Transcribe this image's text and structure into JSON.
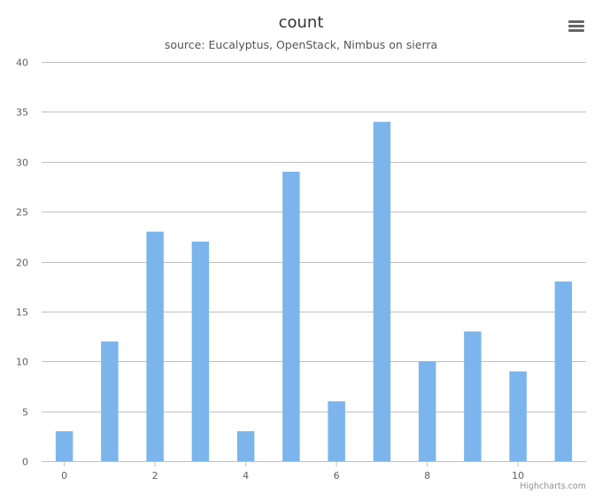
{
  "title": "count",
  "subtitle": "source: Eucalyptus, OpenStack, Nimbus on sierra",
  "credits": "Highcharts.com",
  "menu": {
    "icon": "hamburger-menu-icon"
  },
  "colors": {
    "bar": "#7cb5ec",
    "grid": "#c0c0c0",
    "axis_label": "#606060",
    "title": "#333333"
  },
  "chart_data": {
    "type": "bar",
    "title": "count",
    "subtitle": "source: Eucalyptus, OpenStack, Nimbus on sierra",
    "x": [
      0,
      1,
      2,
      3,
      4,
      5,
      6,
      7,
      8,
      9,
      10,
      11
    ],
    "values": [
      3,
      12,
      23,
      22,
      3,
      29,
      6,
      34,
      10,
      13,
      9,
      18
    ],
    "x_ticks": [
      0,
      2,
      4,
      6,
      8,
      10
    ],
    "y_ticks": [
      0,
      5,
      10,
      15,
      20,
      25,
      30,
      35,
      40
    ],
    "ylim": [
      0,
      40
    ],
    "xlim": [
      -0.5,
      11.5
    ],
    "grid": true,
    "legend": false,
    "xlabel": "",
    "ylabel": ""
  }
}
